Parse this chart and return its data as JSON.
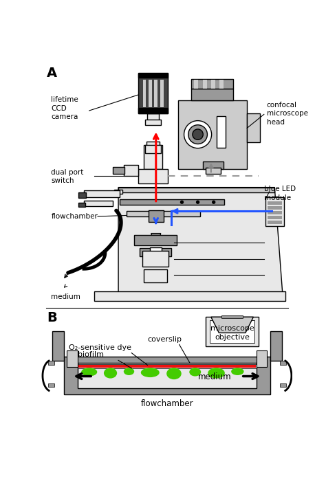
{
  "bg_color": "#ffffff",
  "label_A": "A",
  "label_B": "B",
  "text_lifetime_ccd": "lifetime\nCCD\ncamera",
  "text_confocal": "confocal\nmicroscope\nhead",
  "text_dual_port": "dual port\nswitch",
  "text_blue_led": "blue LED\nmodule",
  "text_flowchamber_A": "flowchamber",
  "text_medium_A": "medium",
  "text_coverslip": "coverslip",
  "text_o2_dye": "O₂-sensitive dye",
  "text_biofilm": "biofilm",
  "text_microscope_obj": "microscope\nobjective",
  "text_medium_B": "medium",
  "text_flowchamber_B": "flowchamber",
  "red_arrow_color": "#ff0000",
  "blue_arrow_color": "#2255ff",
  "gray_arrow_color": "#888888",
  "red_layer_color": "#ee1111",
  "green_blob_color": "#44cc00",
  "dark_gray": "#444444",
  "light_gray": "#cccccc",
  "mid_gray": "#999999",
  "very_light_gray": "#e8e8e8",
  "table_gray": "#dddddd",
  "black": "#000000",
  "white": "#ffffff",
  "line_color": "#000000"
}
